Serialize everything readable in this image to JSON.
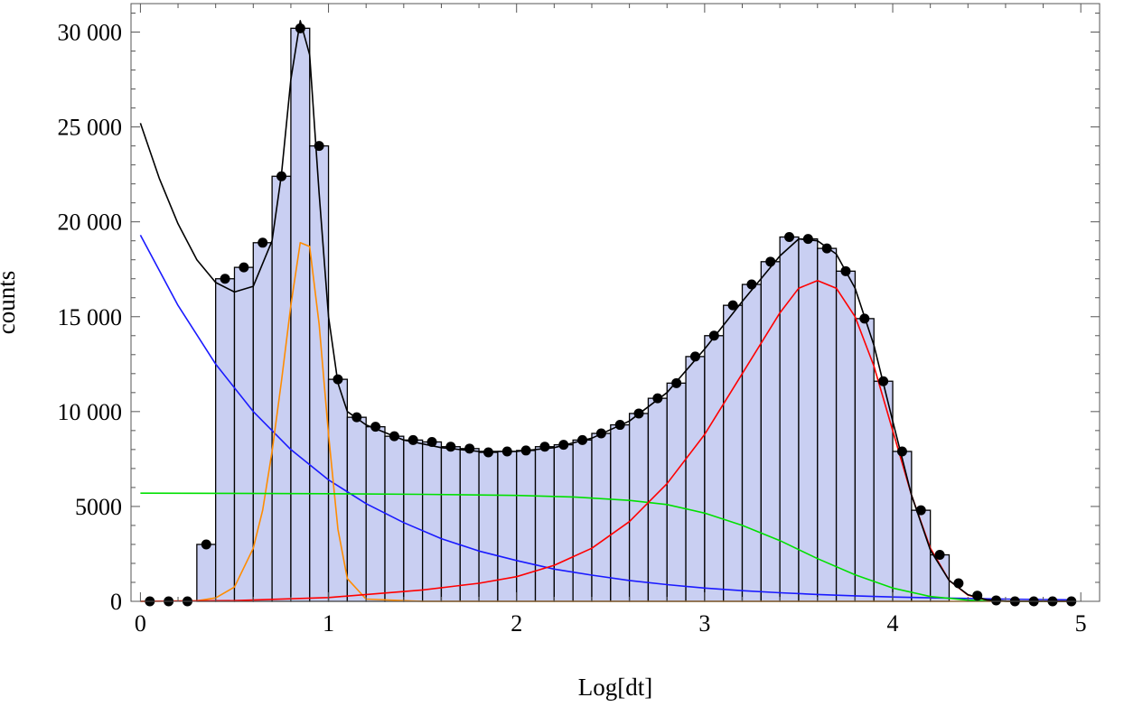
{
  "chart_data": {
    "type": "bar",
    "title": "",
    "xlabel": "Log[dt]",
    "ylabel": "counts",
    "xlim": [
      -0.05,
      5.1
    ],
    "ylim": [
      0,
      31500
    ],
    "x_ticks": [
      0,
      1,
      2,
      3,
      4,
      5
    ],
    "x_tick_labels": [
      "0",
      "1",
      "2",
      "3",
      "4",
      "5"
    ],
    "y_ticks": [
      0,
      5000,
      10000,
      15000,
      20000,
      25000,
      30000
    ],
    "y_tick_labels": [
      "0",
      "5000",
      "10 000",
      "15 000",
      "20 000",
      "25 000",
      "30 000"
    ],
    "grid": false,
    "legend": "none",
    "bin_width": 0.1,
    "histogram": {
      "name": "",
      "color": "#c9cff2",
      "edge_color": "#000000",
      "bin_centers": [
        0.35,
        0.45,
        0.55,
        0.65,
        0.75,
        0.85,
        0.95,
        1.05,
        1.15,
        1.25,
        1.35,
        1.45,
        1.55,
        1.65,
        1.75,
        1.85,
        1.95,
        2.05,
        2.15,
        2.25,
        2.35,
        2.45,
        2.55,
        2.65,
        2.75,
        2.85,
        2.95,
        3.05,
        3.15,
        3.25,
        3.35,
        3.45,
        3.55,
        3.65,
        3.75,
        3.85,
        3.95,
        4.05,
        4.15,
        4.25
      ],
      "values": [
        3000,
        17000,
        17600,
        18900,
        22400,
        30200,
        24000,
        11700,
        9700,
        9200,
        8700,
        8500,
        8400,
        8150,
        8050,
        7850,
        7900,
        7950,
        8150,
        8250,
        8500,
        8850,
        9300,
        9900,
        10700,
        11500,
        12900,
        14000,
        15600,
        16700,
        17900,
        19200,
        19100,
        18600,
        17400,
        14900,
        11600,
        7900,
        4800,
        2450
      ]
    },
    "points": {
      "name": "",
      "color": "#000000",
      "x": [
        0.05,
        0.15,
        0.25,
        0.35,
        0.45,
        0.55,
        0.65,
        0.75,
        0.85,
        0.95,
        1.05,
        1.15,
        1.25,
        1.35,
        1.45,
        1.55,
        1.65,
        1.75,
        1.85,
        1.95,
        2.05,
        2.15,
        2.25,
        2.35,
        2.45,
        2.55,
        2.65,
        2.75,
        2.85,
        2.95,
        3.05,
        3.15,
        3.25,
        3.35,
        3.45,
        3.55,
        3.65,
        3.75,
        3.85,
        3.95,
        4.05,
        4.15,
        4.25,
        4.35,
        4.45,
        4.55,
        4.65,
        4.75,
        4.85,
        4.95
      ],
      "y": [
        0,
        0,
        0,
        3000,
        17000,
        17600,
        18900,
        22400,
        30200,
        24000,
        11700,
        9700,
        9200,
        8700,
        8500,
        8400,
        8150,
        8050,
        7850,
        7900,
        7950,
        8150,
        8250,
        8500,
        8850,
        9300,
        9900,
        10700,
        11500,
        12900,
        14000,
        15600,
        16700,
        17900,
        19200,
        19100,
        18600,
        17400,
        14900,
        11600,
        7900,
        4800,
        2450,
        950,
        300,
        50,
        0,
        0,
        0,
        0
      ]
    },
    "series": [
      {
        "name": "",
        "color": "#000000",
        "x": [
          0,
          0.1,
          0.2,
          0.3,
          0.4,
          0.5,
          0.6,
          0.7,
          0.75,
          0.8,
          0.85,
          0.9,
          0.95,
          1.0,
          1.05,
          1.1,
          1.2,
          1.4,
          1.6,
          1.8,
          2.0,
          2.2,
          2.4,
          2.6,
          2.8,
          3.0,
          3.2,
          3.4,
          3.5,
          3.6,
          3.7,
          3.8,
          3.9,
          4.0,
          4.1,
          4.2,
          4.3,
          4.4,
          4.5,
          4.6,
          4.95
        ],
        "y": [
          25200,
          22300,
          19900,
          18000,
          16800,
          16300,
          16600,
          19000,
          22500,
          27500,
          30600,
          28800,
          21500,
          15000,
          11500,
          10000,
          9300,
          8500,
          8100,
          7900,
          7900,
          8100,
          8600,
          9500,
          11000,
          13300,
          15800,
          18200,
          19100,
          19000,
          18300,
          16500,
          13500,
          9500,
          5600,
          2700,
          1100,
          350,
          80,
          10,
          0
        ]
      },
      {
        "name": "",
        "color": "#1a1aff",
        "x": [
          0,
          0.2,
          0.4,
          0.6,
          0.8,
          1.0,
          1.2,
          1.4,
          1.6,
          1.8,
          2.0,
          2.2,
          2.4,
          2.6,
          2.8,
          3.0,
          3.2,
          3.4,
          3.6,
          3.8,
          4.0,
          4.2,
          4.4,
          4.6,
          4.8,
          4.95
        ],
        "y": [
          19300,
          15600,
          12500,
          10000,
          8000,
          6400,
          5150,
          4150,
          3300,
          2650,
          2150,
          1700,
          1380,
          1100,
          880,
          700,
          560,
          450,
          360,
          290,
          230,
          185,
          150,
          120,
          95,
          80
        ]
      },
      {
        "name": "",
        "color": "#ff8c00",
        "x": [
          0,
          0.3,
          0.4,
          0.5,
          0.6,
          0.65,
          0.7,
          0.75,
          0.8,
          0.85,
          0.9,
          0.95,
          1.0,
          1.05,
          1.1,
          1.2,
          1.5,
          4.95
        ],
        "y": [
          0,
          30,
          180,
          750,
          2800,
          4800,
          7900,
          11600,
          15600,
          18900,
          18700,
          14600,
          8800,
          3800,
          1200,
          120,
          0,
          0
        ]
      },
      {
        "name": "",
        "color": "#00e000",
        "x": [
          0,
          0.5,
          1.0,
          1.5,
          2.0,
          2.3,
          2.6,
          2.8,
          3.0,
          3.2,
          3.4,
          3.6,
          3.8,
          4.0,
          4.2,
          4.4,
          4.6,
          4.8,
          4.95
        ],
        "y": [
          5700,
          5690,
          5670,
          5640,
          5580,
          5500,
          5320,
          5100,
          4650,
          4000,
          3200,
          2250,
          1400,
          700,
          250,
          60,
          10,
          0,
          0
        ]
      },
      {
        "name": "",
        "color": "#ff0000",
        "x": [
          0,
          0.5,
          1.0,
          1.5,
          1.8,
          2.0,
          2.2,
          2.4,
          2.6,
          2.8,
          3.0,
          3.2,
          3.4,
          3.5,
          3.6,
          3.7,
          3.8,
          3.9,
          4.0,
          4.1,
          4.2,
          4.3,
          4.4,
          4.5,
          4.6,
          4.95
        ],
        "y": [
          0,
          40,
          200,
          600,
          950,
          1300,
          1900,
          2800,
          4200,
          6200,
          8800,
          12000,
          15200,
          16500,
          16900,
          16500,
          15000,
          12400,
          9000,
          5600,
          2800,
          1100,
          330,
          70,
          10,
          0
        ]
      }
    ]
  }
}
